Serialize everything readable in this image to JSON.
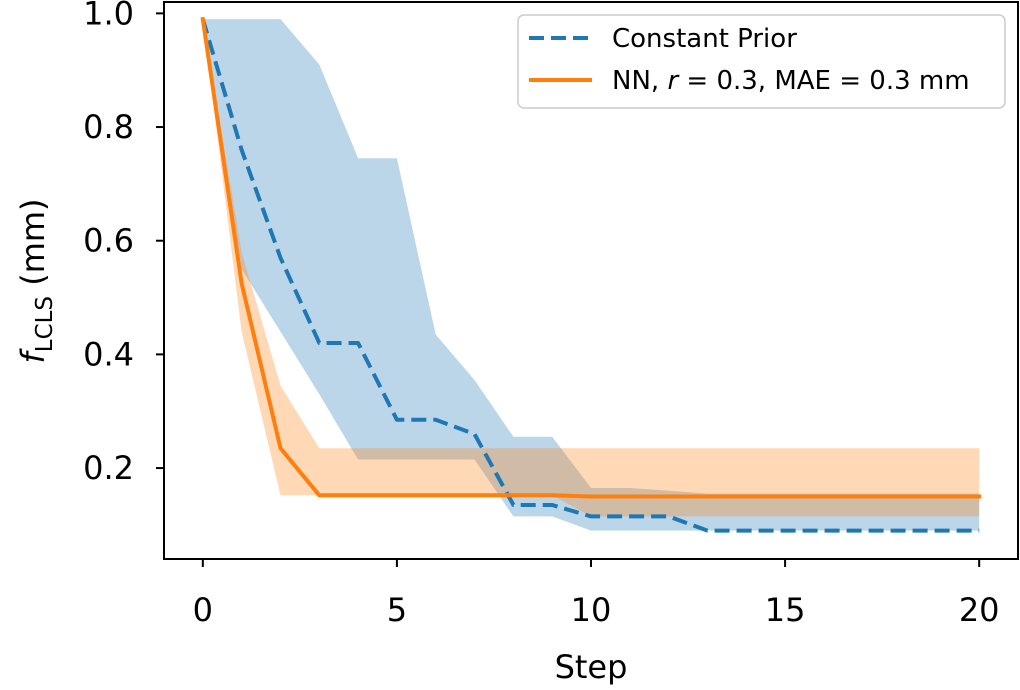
{
  "chart_data": {
    "type": "line",
    "xlabel": "Step",
    "ylabel": {
      "symbol": "f",
      "subscript": "LCLS",
      "unit": "(mm)"
    },
    "xlim": [
      -1,
      21
    ],
    "ylim": [
      0.04,
      1.02
    ],
    "xticks": [
      0,
      5,
      10,
      15,
      20
    ],
    "xtick_labels": [
      "0",
      "5",
      "10",
      "15",
      "20"
    ],
    "yticks": [
      0.2,
      0.4,
      0.6,
      0.8,
      1.0
    ],
    "ytick_labels": [
      "0.2",
      "0.4",
      "0.6",
      "0.8",
      "1.0"
    ],
    "grid": false,
    "legend_position": "top-right",
    "x": [
      0,
      1,
      2,
      3,
      4,
      5,
      6,
      7,
      8,
      9,
      10,
      11,
      12,
      13,
      14,
      15,
      16,
      17,
      18,
      19,
      20
    ],
    "series": [
      {
        "name": "Constant Prior",
        "legend_label": "Constant Prior",
        "color": "#1f77b4",
        "band_color": "#1f77b4",
        "linestyle": "dashed",
        "values": [
          0.99,
          0.76,
          0.57,
          0.42,
          0.42,
          0.285,
          0.285,
          0.26,
          0.135,
          0.135,
          0.115,
          0.115,
          0.115,
          0.09,
          0.09,
          0.09,
          0.09,
          0.09,
          0.09,
          0.09,
          0.09
        ],
        "lower": [
          0.99,
          0.55,
          0.44,
          0.33,
          0.215,
          0.215,
          0.215,
          0.215,
          0.115,
          0.115,
          0.09,
          0.09,
          0.09,
          0.09,
          0.09,
          0.09,
          0.09,
          0.09,
          0.09,
          0.09,
          0.09
        ],
        "upper": [
          0.99,
          0.99,
          0.99,
          0.91,
          0.745,
          0.745,
          0.435,
          0.355,
          0.255,
          0.255,
          0.165,
          0.165,
          0.16,
          0.155,
          0.155,
          0.155,
          0.155,
          0.155,
          0.155,
          0.155,
          0.155
        ]
      },
      {
        "name": "NN",
        "legend_parts": [
          {
            "text": "NN, "
          },
          {
            "text": "r",
            "italic": true
          },
          {
            "text": " = 0.3, MAE = 0.3 mm"
          }
        ],
        "color": "#ff7f0e",
        "band_color": "#ff7f0e",
        "linestyle": "solid",
        "values": [
          0.99,
          0.525,
          0.235,
          0.152,
          0.152,
          0.152,
          0.152,
          0.152,
          0.152,
          0.152,
          0.15,
          0.15,
          0.15,
          0.15,
          0.15,
          0.15,
          0.15,
          0.15,
          0.15,
          0.15,
          0.15
        ],
        "lower": [
          0.99,
          0.44,
          0.152,
          0.152,
          0.152,
          0.152,
          0.152,
          0.152,
          0.152,
          0.152,
          0.115,
          0.115,
          0.115,
          0.115,
          0.115,
          0.115,
          0.115,
          0.115,
          0.115,
          0.115,
          0.115
        ],
        "upper": [
          0.99,
          0.58,
          0.345,
          0.235,
          0.235,
          0.235,
          0.235,
          0.235,
          0.235,
          0.235,
          0.235,
          0.235,
          0.235,
          0.235,
          0.235,
          0.235,
          0.235,
          0.235,
          0.235,
          0.235,
          0.235
        ]
      }
    ]
  }
}
